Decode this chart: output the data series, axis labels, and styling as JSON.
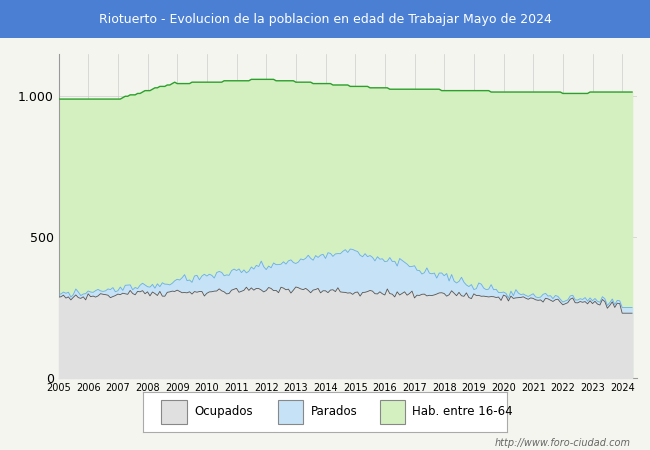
{
  "title": "Riotuerto - Evolucion de la poblacion en edad de Trabajar Mayo de 2024",
  "title_bg_color": "#4a7fd4",
  "title_text_color": "white",
  "ylim": [
    0,
    1150
  ],
  "yticks": [
    0,
    500,
    1000
  ],
  "ytick_labels": [
    "0",
    "500",
    "1.000"
  ],
  "color_hab": "#d4f0c0",
  "color_hab_line": "#2ca02c",
  "color_parados": "#c6e2f7",
  "color_parados_line": "#6ab0e0",
  "color_ocupados": "#e0e0e0",
  "color_ocupados_line": "#555555",
  "legend_labels": [
    "Ocupados",
    "Parados",
    "Hab. entre 16-64"
  ],
  "footer_text": "http://www.foro-ciudad.com",
  "background_color": "#f5f5f0",
  "plot_bg_color": "#f5f5f0"
}
